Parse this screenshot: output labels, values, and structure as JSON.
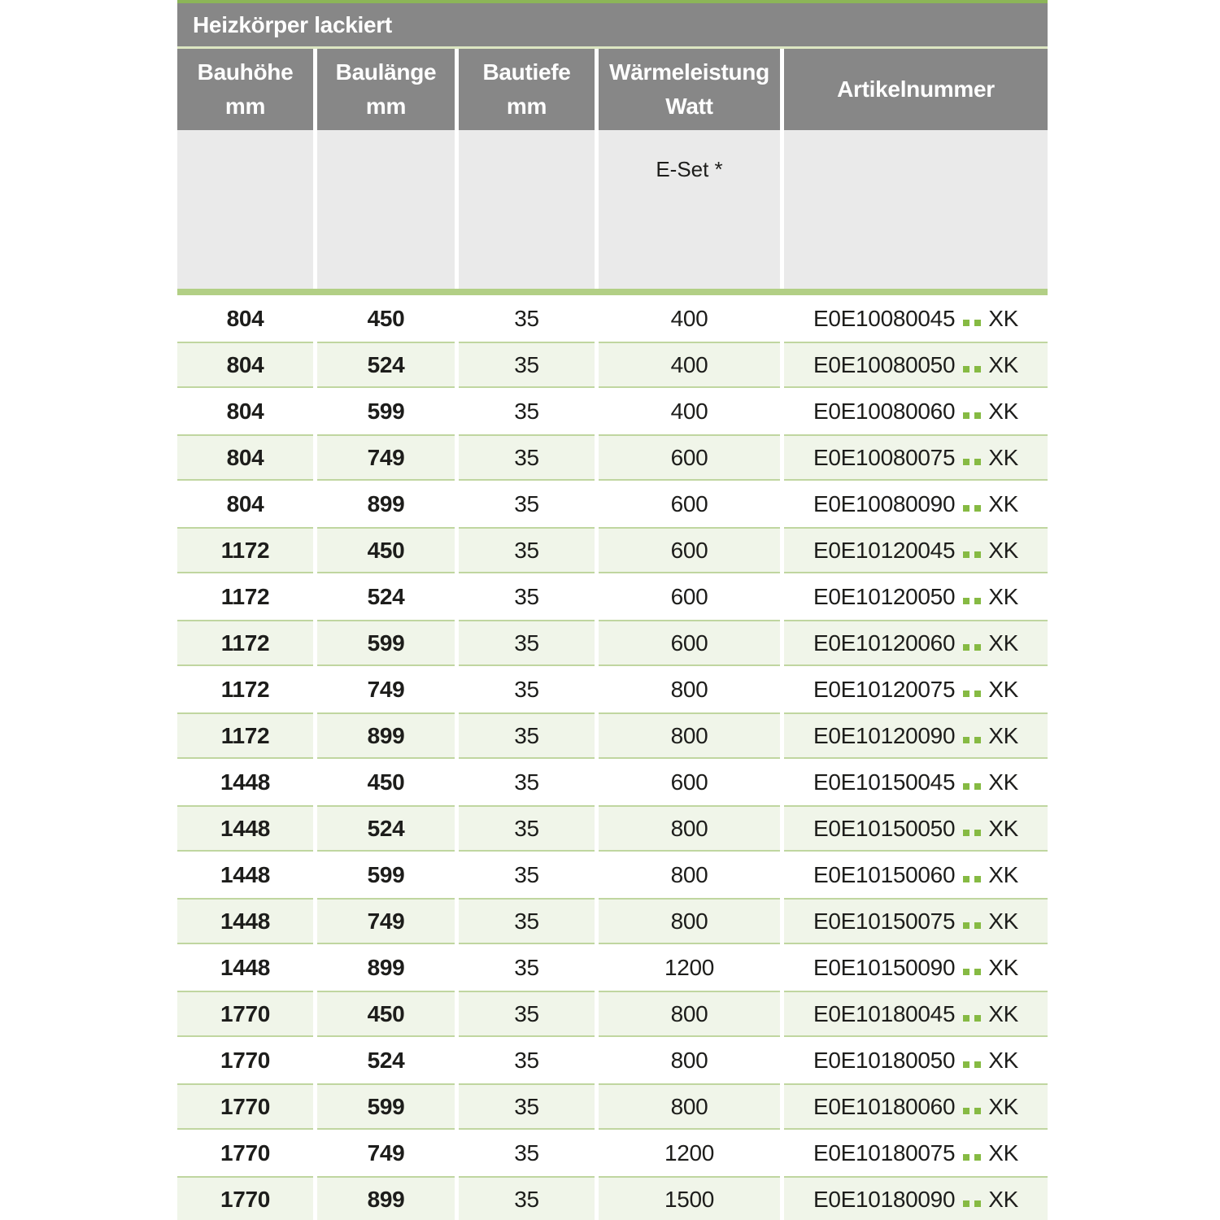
{
  "table": {
    "title": "Heizkörper lackiert",
    "columns": [
      {
        "line1": "Bauhöhe",
        "line2": "mm"
      },
      {
        "line1": "Baulänge",
        "line2": "mm"
      },
      {
        "line1": "Bautiefe",
        "line2": "mm"
      },
      {
        "line1": "Wärmeleistung",
        "line2": "Watt"
      },
      {
        "line1": "Artikelnummer",
        "line2": ""
      }
    ],
    "subheader": {
      "eset": "E-Set *"
    },
    "rows": [
      {
        "bauhoehe": "804",
        "baulaenge": "450",
        "bautiefe": "35",
        "watt": "400",
        "artikel": "E0E10080045",
        "suffix": "XK"
      },
      {
        "bauhoehe": "804",
        "baulaenge": "524",
        "bautiefe": "35",
        "watt": "400",
        "artikel": "E0E10080050",
        "suffix": "XK"
      },
      {
        "bauhoehe": "804",
        "baulaenge": "599",
        "bautiefe": "35",
        "watt": "400",
        "artikel": "E0E10080060",
        "suffix": "XK"
      },
      {
        "bauhoehe": "804",
        "baulaenge": "749",
        "bautiefe": "35",
        "watt": "600",
        "artikel": "E0E10080075",
        "suffix": "XK"
      },
      {
        "bauhoehe": "804",
        "baulaenge": "899",
        "bautiefe": "35",
        "watt": "600",
        "artikel": "E0E10080090",
        "suffix": "XK"
      },
      {
        "bauhoehe": "1172",
        "baulaenge": "450",
        "bautiefe": "35",
        "watt": "600",
        "artikel": "E0E10120045",
        "suffix": "XK"
      },
      {
        "bauhoehe": "1172",
        "baulaenge": "524",
        "bautiefe": "35",
        "watt": "600",
        "artikel": "E0E10120050",
        "suffix": "XK"
      },
      {
        "bauhoehe": "1172",
        "baulaenge": "599",
        "bautiefe": "35",
        "watt": "600",
        "artikel": "E0E10120060",
        "suffix": "XK"
      },
      {
        "bauhoehe": "1172",
        "baulaenge": "749",
        "bautiefe": "35",
        "watt": "800",
        "artikel": "E0E10120075",
        "suffix": "XK"
      },
      {
        "bauhoehe": "1172",
        "baulaenge": "899",
        "bautiefe": "35",
        "watt": "800",
        "artikel": "E0E10120090",
        "suffix": "XK"
      },
      {
        "bauhoehe": "1448",
        "baulaenge": "450",
        "bautiefe": "35",
        "watt": "600",
        "artikel": "E0E10150045",
        "suffix": "XK"
      },
      {
        "bauhoehe": "1448",
        "baulaenge": "524",
        "bautiefe": "35",
        "watt": "800",
        "artikel": "E0E10150050",
        "suffix": "XK"
      },
      {
        "bauhoehe": "1448",
        "baulaenge": "599",
        "bautiefe": "35",
        "watt": "800",
        "artikel": "E0E10150060",
        "suffix": "XK"
      },
      {
        "bauhoehe": "1448",
        "baulaenge": "749",
        "bautiefe": "35",
        "watt": "800",
        "artikel": "E0E10150075",
        "suffix": "XK"
      },
      {
        "bauhoehe": "1448",
        "baulaenge": "899",
        "bautiefe": "35",
        "watt": "1200",
        "artikel": "E0E10150090",
        "suffix": "XK"
      },
      {
        "bauhoehe": "1770",
        "baulaenge": "450",
        "bautiefe": "35",
        "watt": "800",
        "artikel": "E0E10180045",
        "suffix": "XK"
      },
      {
        "bauhoehe": "1770",
        "baulaenge": "524",
        "bautiefe": "35",
        "watt": "800",
        "artikel": "E0E10180050",
        "suffix": "XK"
      },
      {
        "bauhoehe": "1770",
        "baulaenge": "599",
        "bautiefe": "35",
        "watt": "800",
        "artikel": "E0E10180060",
        "suffix": "XK"
      },
      {
        "bauhoehe": "1770",
        "baulaenge": "749",
        "bautiefe": "35",
        "watt": "1200",
        "artikel": "E0E10180075",
        "suffix": "XK"
      },
      {
        "bauhoehe": "1770",
        "baulaenge": "899",
        "bautiefe": "35",
        "watt": "1500",
        "artikel": "E0E10180090",
        "suffix": "XK"
      }
    ]
  },
  "colors": {
    "header_gray": "#878787",
    "subheader_gray": "#eaeaea",
    "top_accent_green": "#8cb558",
    "title_separator_green": "#dce6c2",
    "divider_green": "#b2cf85",
    "row_green_fill": "#f0f5e9",
    "row_green_border": "#c0d6a0",
    "dot_green": "#86ba43",
    "text_dark": "#1d1d1b",
    "header_text": "#ffffff"
  }
}
